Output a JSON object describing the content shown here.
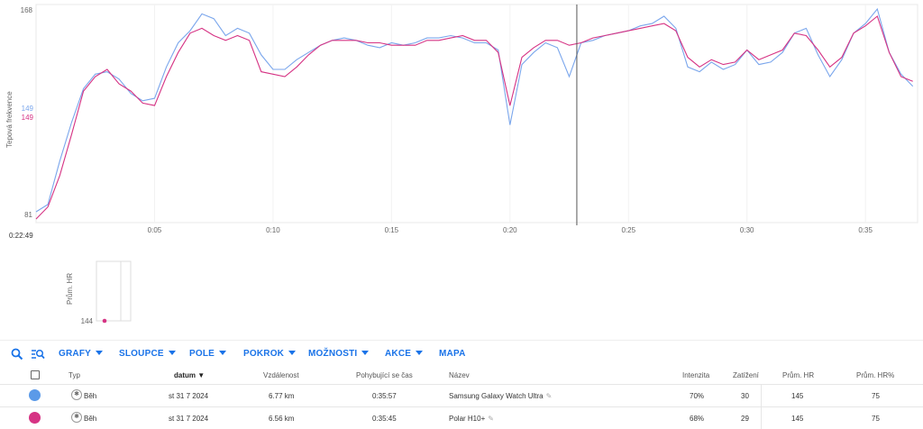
{
  "chart_data": {
    "type": "line",
    "ylabel": "Tepová frekvence",
    "ylim": [
      81,
      168
    ],
    "y_ticks": [
      "168",
      "81"
    ],
    "x_tick_labels": [
      "0:05",
      "0:10",
      "0:15",
      "0:20",
      "0:25",
      "0:30",
      "0:35"
    ],
    "x_ticks_minutes": [
      5,
      10,
      15,
      20,
      25,
      30,
      35
    ],
    "xlim_minutes": [
      0,
      37.2
    ],
    "cursor_time": "0:22:49",
    "cursor_minutes": 22.82,
    "cursor_values": {
      "watch": "149",
      "polar": "149"
    },
    "x_minutes": [
      0,
      0.5,
      1,
      1.5,
      2,
      2.5,
      3,
      3.5,
      4,
      4.5,
      5,
      5.5,
      6,
      6.5,
      7,
      7.5,
      8,
      8.5,
      9,
      9.5,
      10,
      10.5,
      11,
      11.5,
      12,
      12.5,
      13,
      13.5,
      14,
      14.5,
      15,
      15.5,
      16,
      16.5,
      17,
      17.5,
      18,
      18.5,
      19,
      19.5,
      20,
      20.5,
      21,
      21.5,
      22,
      22.5,
      23,
      23.5,
      24,
      24.5,
      25,
      25.5,
      26,
      26.5,
      27,
      27.5,
      28,
      28.5,
      29,
      29.5,
      30,
      30.5,
      31,
      31.5,
      32,
      32.5,
      33,
      33.5,
      34,
      34.5,
      35,
      35.5,
      36,
      36.5,
      37
    ],
    "series": [
      {
        "name": "Samsung Galaxy Watch Ultra",
        "color": "#7aa6ec",
        "values": [
          84,
          87,
          105,
          121,
          135,
          141,
          142,
          139,
          133,
          130,
          131,
          144,
          154,
          159,
          166,
          164,
          157,
          160,
          158,
          149,
          143,
          143,
          147,
          150,
          153,
          155,
          156,
          155,
          153,
          152,
          154,
          153,
          154,
          156,
          156,
          157,
          156,
          154,
          154,
          151,
          120,
          145,
          150,
          154,
          152,
          140,
          154,
          155,
          157,
          158,
          159,
          161,
          162,
          165,
          160,
          144,
          142,
          146,
          143,
          145,
          151,
          145,
          146,
          150,
          158,
          160,
          149,
          140,
          147,
          158,
          162,
          168,
          150,
          141,
          136
        ]
      },
      {
        "name": "Polar H10+",
        "color": "#d63384",
        "values": [
          81,
          86,
          99,
          116,
          134,
          140,
          143,
          137,
          134,
          129,
          128,
          140,
          150,
          158,
          160,
          157,
          155,
          157,
          155,
          142,
          141,
          140,
          144,
          149,
          153,
          155,
          155,
          155,
          154,
          154,
          153,
          153,
          153,
          155,
          155,
          156,
          157,
          155,
          155,
          150,
          128,
          148,
          152,
          155,
          155,
          153,
          154,
          156,
          157,
          158,
          159,
          160,
          161,
          162,
          159,
          148,
          144,
          147,
          145,
          146,
          151,
          147,
          149,
          151,
          158,
          157,
          151,
          144,
          148,
          158,
          161,
          165,
          150,
          140,
          138
        ]
      }
    ]
  },
  "mini_chart": {
    "ylabel": "Prům. HR",
    "tick": "144",
    "point_color": "#d63384"
  },
  "toolbar": {
    "grafy": "GRAFY",
    "sloupce": "SLOUPCE",
    "pole": "POLE",
    "pokrok": "POKROK",
    "moznosti": "MOŽNOSTI",
    "akce": "AKCE",
    "mapa": "MAPA"
  },
  "table": {
    "headers": {
      "typ": "Typ",
      "datum": "datum ▼",
      "vzdalenost": "Vzdálenost",
      "cas": "Pohybující se čas",
      "nazev": "Název",
      "intenzita": "Intenzita",
      "zatizeni": "Zatížení",
      "prum_hr": "Prům. HR",
      "prum_hr_pct": "Prům. HR%"
    },
    "rows": [
      {
        "color": "#5b9ae8",
        "typ": "Běh",
        "datum": "st 31 7 2024",
        "vzdalenost": "6.77 km",
        "cas": "0:35:57",
        "nazev": "Samsung Galaxy Watch Ultra",
        "intenzita": "70%",
        "zatizeni": "30",
        "prum_hr": "145",
        "prum_hr_pct": "75"
      },
      {
        "color": "#d63384",
        "typ": "Běh",
        "datum": "st 31 7 2024",
        "vzdalenost": "6.56 km",
        "cas": "0:35:45",
        "nazev": "Polar H10+",
        "intenzita": "68%",
        "zatizeni": "29",
        "prum_hr": "145",
        "prum_hr_pct": "75"
      }
    ]
  }
}
